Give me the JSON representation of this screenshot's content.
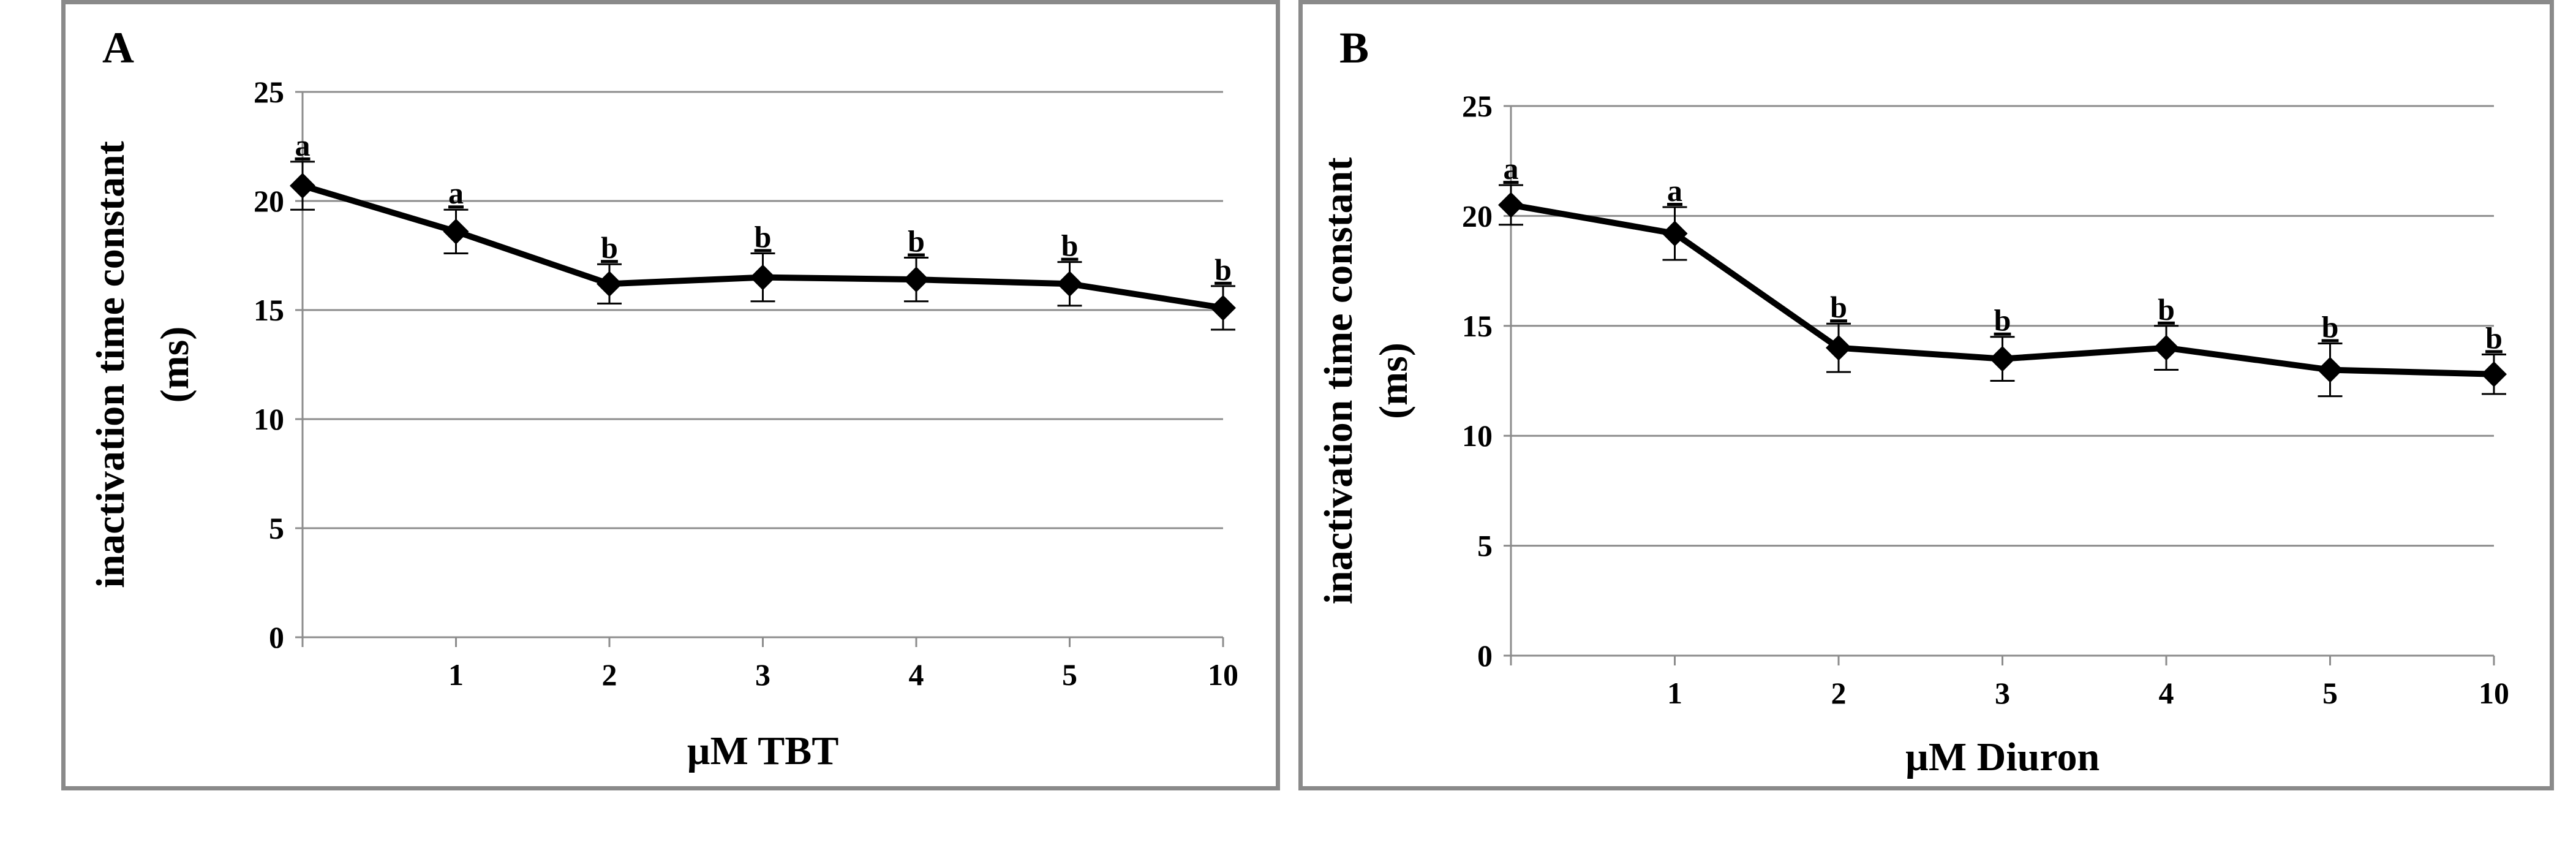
{
  "chart_data": [
    {
      "type": "line",
      "panel_label": "A",
      "categories": [
        "",
        "1",
        "2",
        "3",
        "4",
        "5",
        "10"
      ],
      "values": [
        20.7,
        18.6,
        16.2,
        16.5,
        16.4,
        16.2,
        15.1
      ],
      "errors": [
        1.1,
        1.0,
        0.9,
        1.1,
        1.0,
        1.0,
        1.0
      ],
      "significance": [
        "a",
        "a",
        "b",
        "b",
        "b",
        "b",
        "b"
      ],
      "xlabel": "µM TBT",
      "ylabel_line1": "inactivation time constant",
      "ylabel_line2": "(ms)",
      "ylim": [
        0,
        25
      ],
      "yticks": [
        "0",
        "5",
        "10",
        "15",
        "20",
        "25"
      ],
      "grid": true,
      "legend": "none"
    },
    {
      "type": "line",
      "panel_label": "B",
      "categories": [
        "",
        "1",
        "2",
        "3",
        "4",
        "5",
        "10"
      ],
      "values": [
        20.5,
        19.2,
        14.0,
        13.5,
        14.0,
        13.0,
        12.8
      ],
      "errors": [
        0.9,
        1.2,
        1.1,
        1.0,
        1.0,
        1.2,
        0.9
      ],
      "significance": [
        "a",
        "a",
        "b",
        "b",
        "b",
        "b",
        "b"
      ],
      "xlabel": "µM Diuron",
      "ylabel_line1": "inactivation time constant",
      "ylabel_line2": "(ms)",
      "ylim": [
        0,
        25
      ],
      "yticks": [
        "0",
        "5",
        "10",
        "15",
        "20",
        "25"
      ],
      "grid": true,
      "legend": "none"
    }
  ]
}
